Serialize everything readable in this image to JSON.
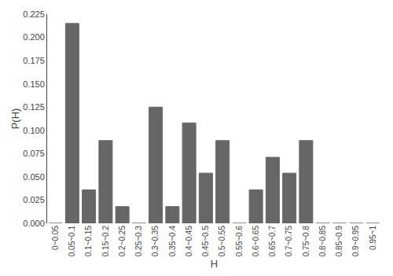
{
  "chart_data": {
    "type": "bar",
    "categories": [
      "0~0.05",
      "0.05~0.1",
      "0.1~0.15",
      "0.15~0.2",
      "0.2~0.25",
      "0.25~0.3",
      "0.3~0.35",
      "0.35~0.4",
      "0.4~0.45",
      "0.45~0.5",
      "0.5~0.55",
      "0.55~0.6",
      "0.6~0.65",
      "0.65~0.7",
      "0.7~0.75",
      "0.75~0.8",
      "0.8~0.85",
      "0.85~0.9",
      "0.9~0.95",
      "0.95~1"
    ],
    "values": [
      0.0,
      0.215,
      0.036,
      0.089,
      0.018,
      0.0,
      0.125,
      0.018,
      0.108,
      0.054,
      0.089,
      0.0,
      0.036,
      0.071,
      0.054,
      0.089,
      0.0,
      0.0,
      0.0,
      0.0
    ],
    "color": "#666666",
    "xlabel": "H",
    "ylabel": "P(H)",
    "ylim": [
      0,
      0.225
    ],
    "yticks": [
      {
        "value": 0.0,
        "label": "0.000"
      },
      0.025,
      {
        "value": 0.05,
        "label": "0.050"
      },
      0.075,
      {
        "value": 0.1,
        "label": "0.100"
      },
      0.125,
      {
        "value": 0.15,
        "label": "0.150"
      },
      0.175,
      {
        "value": 0.2,
        "label": "0.200"
      },
      0.225
    ],
    "grid": false
  }
}
